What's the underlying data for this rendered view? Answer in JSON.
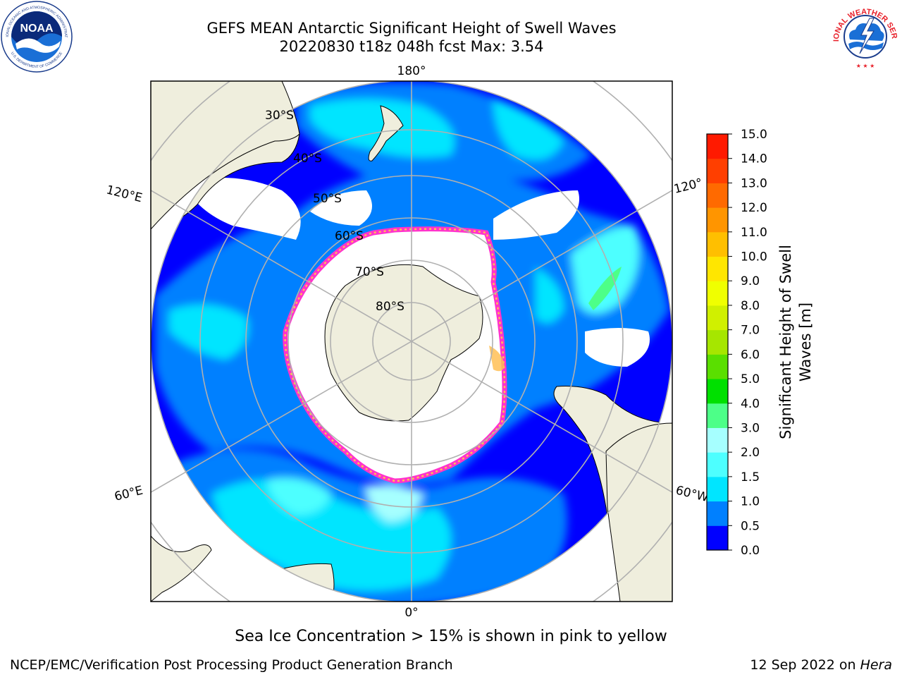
{
  "title_line1": "GEFS MEAN Antarctic Significant Height of Swell Waves",
  "title_line2": "20220830 t18z 048h fcst   Max: 3.54",
  "longitude_labels": {
    "top": "180°",
    "bottom": "0°",
    "upper_left": "120°E",
    "upper_right": "120°",
    "lower_left": "60°E",
    "lower_right": "60°W"
  },
  "latitude_labels": [
    "30°S",
    "40°S",
    "50°S",
    "60°S",
    "70°S",
    "80°S"
  ],
  "colorbar": {
    "label": "Significant Height of Swell Waves [m]",
    "label_line1": "Significant Height of Swell",
    "label_line2": "Waves [m]",
    "ticks": [
      "0.0",
      "0.5",
      "1.0",
      "1.5",
      "2.0",
      "3.0",
      "4.0",
      "5.0",
      "6.0",
      "7.0",
      "8.0",
      "9.0",
      "10.0",
      "11.0",
      "12.0",
      "13.0",
      "14.0",
      "15.0"
    ],
    "colors": [
      "#0000ff",
      "#0080ff",
      "#00e5ff",
      "#4dffff",
      "#a6ffff",
      "#4dff88",
      "#00e000",
      "#5adf00",
      "#a6e600",
      "#d0f000",
      "#f0ff00",
      "#ffe600",
      "#ffbf00",
      "#ff9500",
      "#ff6a00",
      "#ff3f00",
      "#ff1a00"
    ]
  },
  "ice_note": "Sea Ice Concentration > 15% is shown in pink to yellow",
  "footer_left": "NCEP/EMC/Verification Post Processing Product Generation Branch",
  "footer_right_date": "12 Sep 2022 on ",
  "footer_right_host": "Hera",
  "logos": {
    "noaa_text": "NOAA",
    "noaa_ring_top": "NATIONAL OCEANIC AND ATMOSPHERIC ADMINISTRATION",
    "noaa_ring_bottom": "U.S. DEPARTMENT OF COMMERCE",
    "nws_ring": "NATIONAL WEATHER SERVICE"
  },
  "colors": {
    "land": "#efeedd",
    "ocean_low": "#0000ff",
    "ocean_mid": "#0080ff",
    "ocean_high": "#00e5ff",
    "ice_edge": "#ff33cc",
    "ice_inner": "#ffbf55",
    "grid": "#b0b0b0"
  }
}
